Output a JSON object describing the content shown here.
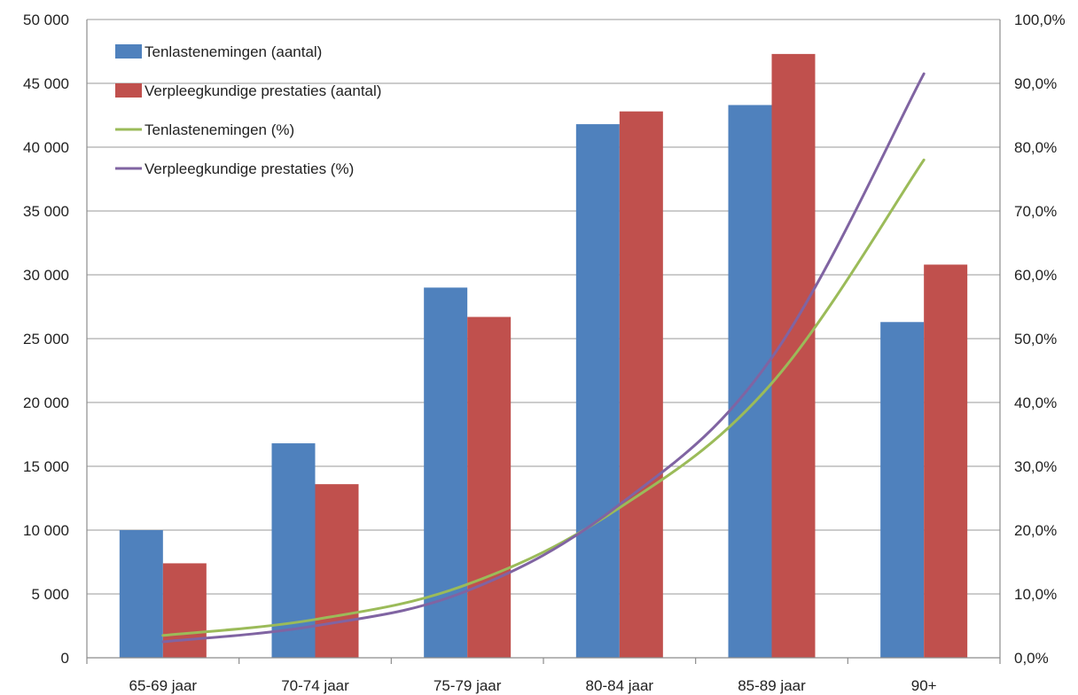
{
  "chart_data": {
    "type": "bar",
    "categories": [
      "65-69 jaar",
      "70-74 jaar",
      "75-79 jaar",
      "80-84 jaar",
      "85-89 jaar",
      "90+"
    ],
    "y_left": {
      "range": [
        0,
        50000
      ],
      "ticks": [
        0,
        5000,
        10000,
        15000,
        20000,
        25000,
        30000,
        35000,
        40000,
        45000,
        50000
      ],
      "tick_labels": [
        "0",
        "5 000",
        "10 000",
        "15 000",
        "20 000",
        "25 000",
        "30 000",
        "35 000",
        "40 000",
        "45 000",
        "50 000"
      ]
    },
    "y_right": {
      "range": [
        0,
        100
      ],
      "ticks": [
        0,
        10,
        20,
        30,
        40,
        50,
        60,
        70,
        80,
        90,
        100
      ],
      "tick_labels": [
        "0,0%",
        "10,0%",
        "20,0%",
        "30,0%",
        "40,0%",
        "50,0%",
        "60,0%",
        "70,0%",
        "80,0%",
        "90,0%",
        "100,0%"
      ]
    },
    "grid": true,
    "legend_position": "top-left",
    "series": [
      {
        "name": "Tenlastenemingen (aantal)",
        "kind": "bar",
        "axis": "left",
        "color": "#4f81bd",
        "values": [
          10000,
          16800,
          29000,
          41800,
          43300,
          26300
        ]
      },
      {
        "name": "Verpleegkundige prestaties (aantal)",
        "kind": "bar",
        "axis": "left",
        "color": "#c0504d",
        "values": [
          7400,
          13600,
          26700,
          42800,
          47300,
          30800
        ]
      },
      {
        "name": "Tenlastenemingen (%)",
        "kind": "line",
        "axis": "right",
        "color": "#9bbb59",
        "values": [
          3.5,
          6.0,
          11.5,
          23.5,
          43.0,
          78.0
        ]
      },
      {
        "name": "Verpleegkundige prestaties (%)",
        "kind": "line",
        "axis": "right",
        "color": "#8064a2",
        "values": [
          2.5,
          5.0,
          10.5,
          24.0,
          47.0,
          91.5
        ]
      }
    ]
  }
}
